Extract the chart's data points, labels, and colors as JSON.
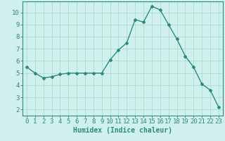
{
  "x": [
    0,
    1,
    2,
    3,
    4,
    5,
    6,
    7,
    8,
    9,
    10,
    11,
    12,
    13,
    14,
    15,
    16,
    17,
    18,
    19,
    20,
    21,
    22,
    23
  ],
  "y": [
    5.5,
    5.0,
    4.6,
    4.7,
    4.9,
    5.0,
    5.0,
    5.0,
    5.0,
    5.0,
    6.1,
    6.9,
    7.5,
    9.4,
    9.2,
    10.5,
    10.2,
    9.0,
    7.8,
    6.4,
    5.5,
    4.1,
    3.6,
    2.2
  ],
  "line_color": "#2e8b7a",
  "marker": "D",
  "marker_size": 2.0,
  "bg_color": "#cff0ec",
  "grid_color": "#aaddcc",
  "xlabel": "Humidex (Indice chaleur)",
  "xlim": [
    -0.5,
    23.5
  ],
  "ylim": [
    1.5,
    10.9
  ],
  "yticks": [
    2,
    3,
    4,
    5,
    6,
    7,
    8,
    9,
    10
  ],
  "xticks": [
    0,
    1,
    2,
    3,
    4,
    5,
    6,
    7,
    8,
    9,
    10,
    11,
    12,
    13,
    14,
    15,
    16,
    17,
    18,
    19,
    20,
    21,
    22,
    23
  ],
  "xlabel_fontsize": 7,
  "tick_fontsize": 6.5,
  "spine_color": "#2e8b7a"
}
